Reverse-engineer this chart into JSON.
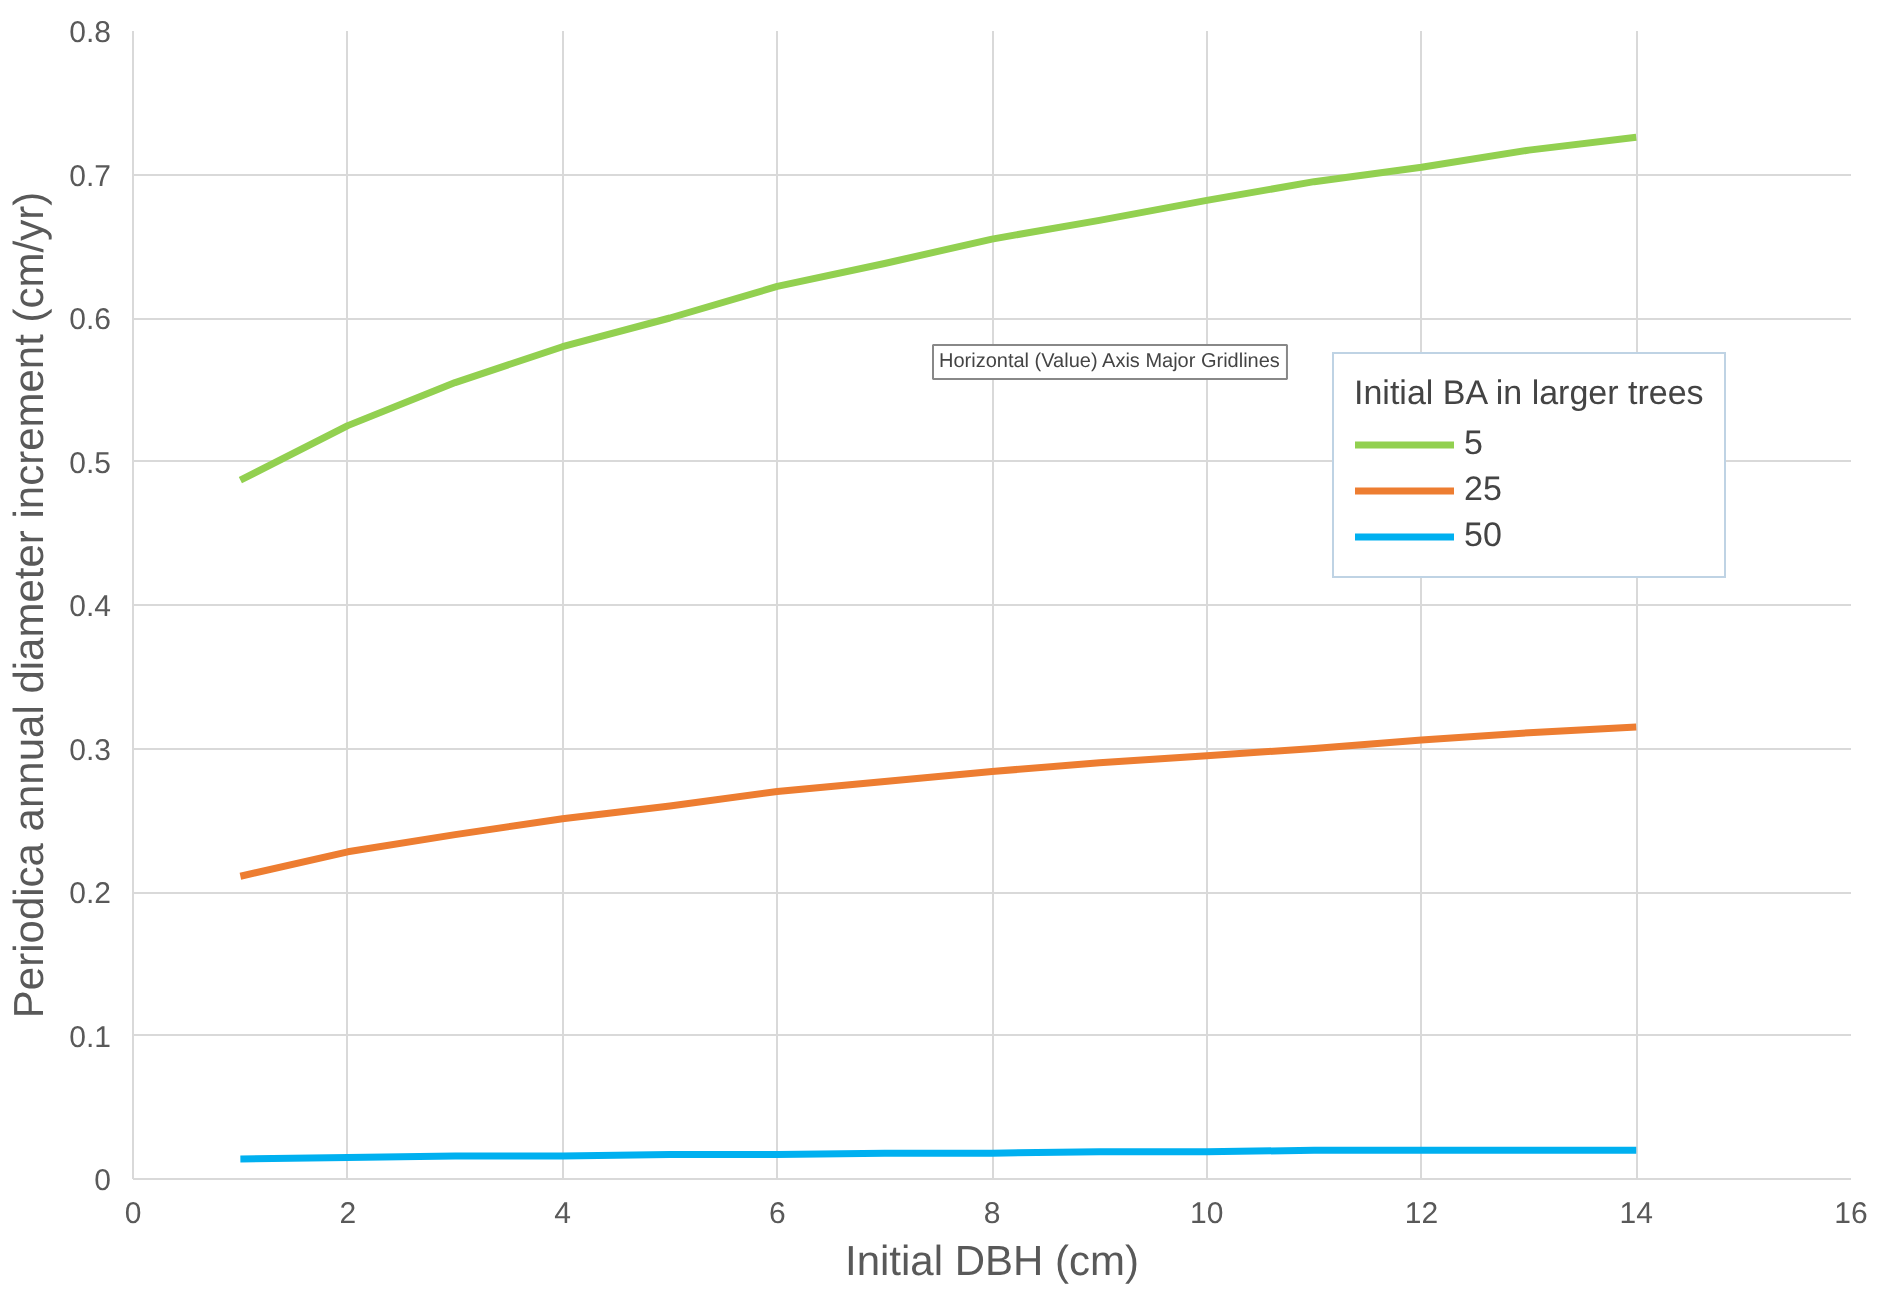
{
  "chart_data": {
    "type": "line",
    "xlabel": "Initial DBH (cm)",
    "ylabel": "Periodica annual diameter increment (cm/yr)",
    "legend_title": "Initial BA in larger trees",
    "annotations": [
      "Horizontal (Value) Axis Major Gridlines"
    ],
    "x": [
      1,
      2,
      3,
      4,
      5,
      6,
      7,
      8,
      9,
      10,
      11,
      12,
      13,
      14
    ],
    "series": [
      {
        "name": "5",
        "color": "#92d050",
        "values": [
          0.487,
          0.525,
          0.555,
          0.58,
          0.6,
          0.622,
          0.638,
          0.655,
          0.668,
          0.682,
          0.695,
          0.705,
          0.717,
          0.726
        ]
      },
      {
        "name": "25",
        "color": "#ed7d31",
        "values": [
          0.211,
          0.228,
          0.24,
          0.251,
          0.26,
          0.27,
          0.277,
          0.284,
          0.29,
          0.295,
          0.3,
          0.306,
          0.311,
          0.315
        ]
      },
      {
        "name": "50",
        "color": "#00b0f0",
        "values": [
          0.014,
          0.015,
          0.016,
          0.016,
          0.017,
          0.017,
          0.018,
          0.018,
          0.019,
          0.019,
          0.02,
          0.02,
          0.02,
          0.02
        ]
      }
    ],
    "xlim": [
      0,
      16
    ],
    "xticks": [
      0,
      2,
      4,
      6,
      8,
      10,
      12,
      14,
      16
    ],
    "ylim": [
      0,
      0.8
    ],
    "yticks": [
      0,
      {
        "value": 0.1,
        "label": "0.1"
      },
      {
        "value": 0.2,
        "label": "0.2"
      },
      {
        "value": 0.3,
        "label": "0.3"
      },
      {
        "value": 0.4,
        "label": "0.4"
      },
      {
        "value": 0.5,
        "label": "0.5"
      },
      {
        "value": 0.6,
        "label": "0.6"
      },
      {
        "value": 0.7,
        "label": "0.7"
      },
      {
        "value": 0.8,
        "label": "0.8"
      }
    ],
    "grid": true,
    "legend": "right",
    "marker": "none",
    "line_style": "solid"
  }
}
